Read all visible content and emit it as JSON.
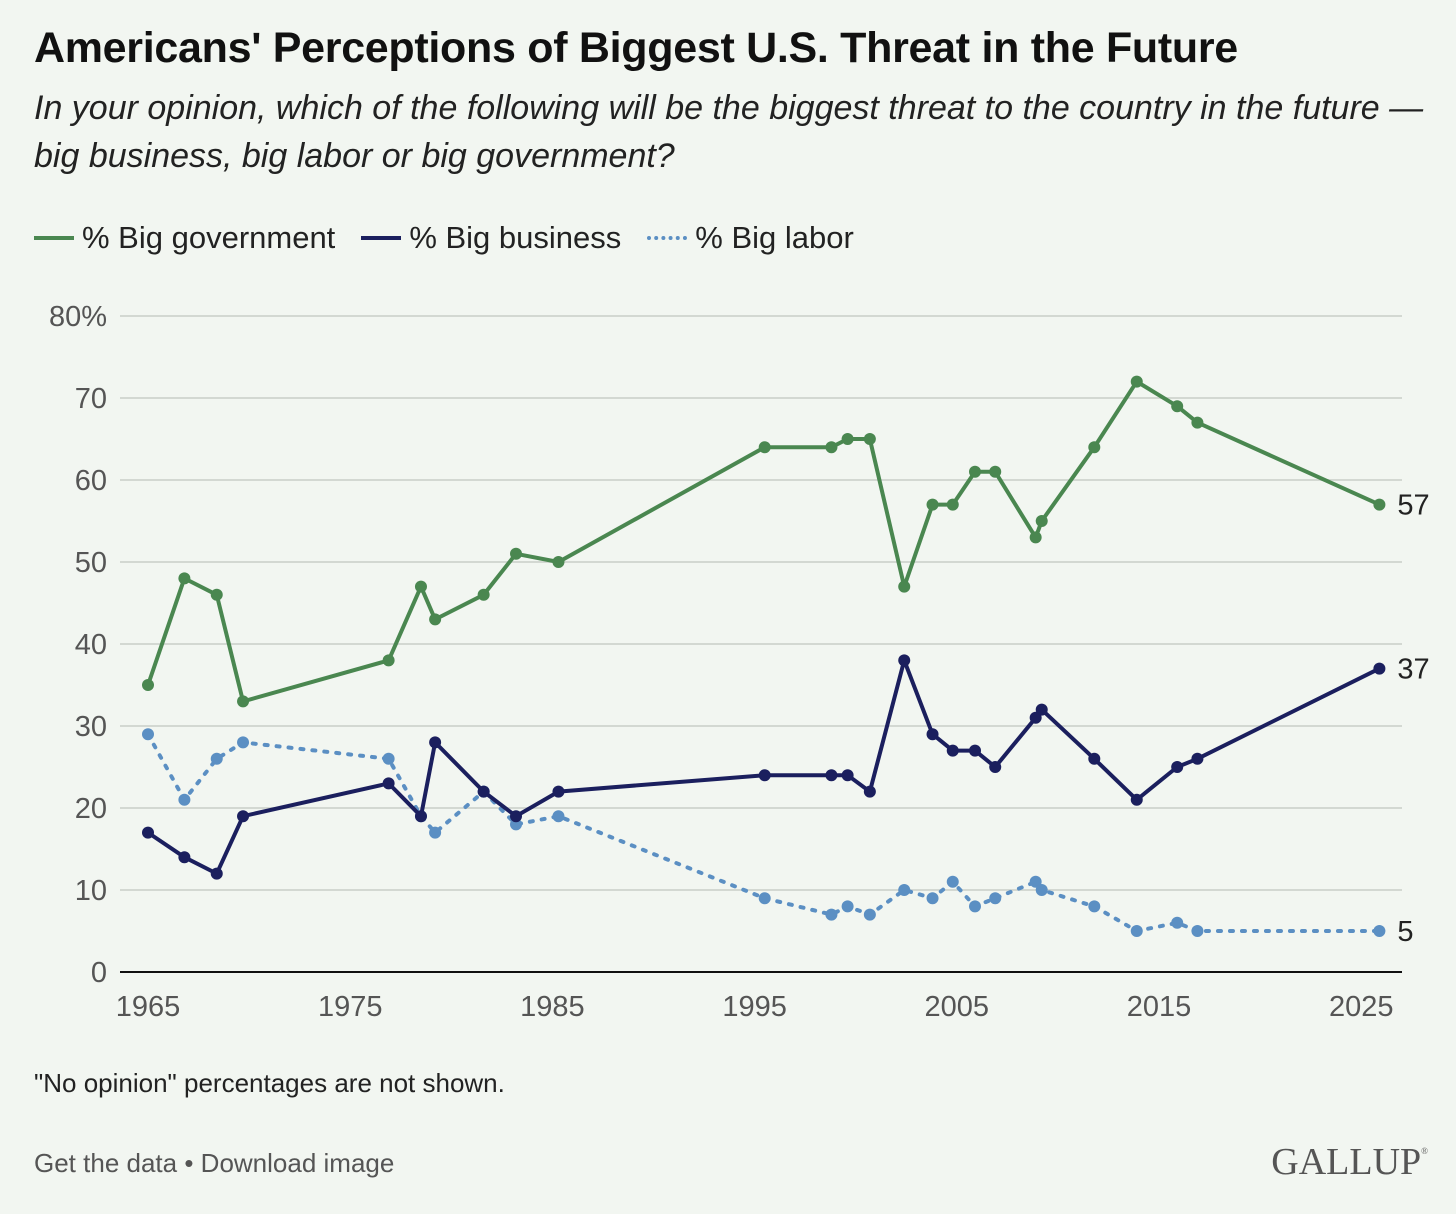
{
  "title": "Americans' Perceptions of Biggest U.S. Threat in the Future",
  "subtitle": "In your opinion, which of the following will be the biggest threat to the country in the future — big business, big labor or big government?",
  "note": "\"No opinion\" percentages are not shown.",
  "footer": {
    "get_data": "Get the data",
    "separator": " • ",
    "download": "Download image"
  },
  "logo": "GALLUP",
  "chart_data": {
    "type": "line",
    "title": "Americans' Perceptions of Biggest U.S. Threat in the Future",
    "xlabel": "",
    "ylabel": "",
    "xlim": [
      1965,
      2027
    ],
    "ylim": [
      0,
      80
    ],
    "x_ticks": [
      1965,
      1975,
      1985,
      1995,
      2005,
      2015,
      2025
    ],
    "y_ticks": [
      0,
      10,
      20,
      30,
      40,
      50,
      60,
      70,
      80
    ],
    "y_tick_labels": [
      "0",
      "10",
      "20",
      "30",
      "40",
      "50",
      "60",
      "70",
      "80%"
    ],
    "grid": true,
    "legend_position": "top-left",
    "x": [
      1965.0,
      1966.8,
      1968.4,
      1969.7,
      1976.9,
      1978.5,
      1979.2,
      1981.6,
      1983.2,
      1985.3,
      1995.5,
      1998.8,
      1999.6,
      2000.7,
      2002.4,
      2003.8,
      2004.8,
      2005.9,
      2006.9,
      2008.9,
      2009.2,
      2011.8,
      2013.9,
      2015.9,
      2016.9,
      2025.9
    ],
    "series": [
      {
        "name": "% Big government",
        "color": "#4a8750",
        "style": "solid",
        "end_label": "57",
        "values": [
          35,
          48,
          46,
          33,
          38,
          47,
          43,
          46,
          51,
          50,
          64,
          64,
          65,
          65,
          47,
          57,
          57,
          61,
          61,
          53,
          55,
          64,
          72,
          69,
          67,
          57
        ]
      },
      {
        "name": "% Big business",
        "color": "#1b1f5e",
        "style": "solid",
        "end_label": "37",
        "values": [
          17,
          14,
          12,
          19,
          23,
          19,
          28,
          22,
          19,
          22,
          24,
          24,
          24,
          22,
          38,
          29,
          27,
          27,
          25,
          31,
          32,
          26,
          21,
          25,
          26,
          37
        ]
      },
      {
        "name": "% Big labor",
        "color": "#5b8fc3",
        "style": "dotted",
        "end_label": "5",
        "values": [
          29,
          21,
          26,
          28,
          26,
          19,
          17,
          22,
          18,
          19,
          9,
          7,
          8,
          7,
          10,
          9,
          11,
          8,
          9,
          11,
          10,
          8,
          5,
          6,
          5,
          5
        ]
      }
    ]
  }
}
